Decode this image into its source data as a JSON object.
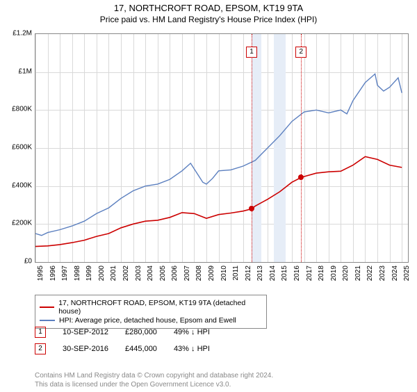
{
  "title": "17, NORTHCROFT ROAD, EPSOM, KT19 9TA",
  "subtitle": "Price paid vs. HM Land Registry's House Price Index (HPI)",
  "chart": {
    "type": "line",
    "plot_bg": "#ffffff",
    "grid_color": "#d9d9d9",
    "border_color": "#888888",
    "x_min": 1995,
    "x_max": 2025.5,
    "y_min": 0,
    "y_max": 1200000,
    "y_ticks": [
      0,
      200000,
      400000,
      600000,
      800000,
      1000000,
      1200000
    ],
    "y_tick_labels": [
      "£0",
      "£200K",
      "£400K",
      "£600K",
      "£800K",
      "£1M",
      "£1.2M"
    ],
    "x_ticks": [
      1995,
      1996,
      1997,
      1998,
      1999,
      2000,
      2001,
      2002,
      2003,
      2004,
      2005,
      2006,
      2007,
      2008,
      2009,
      2010,
      2011,
      2012,
      2013,
      2014,
      2015,
      2016,
      2017,
      2018,
      2019,
      2020,
      2021,
      2022,
      2023,
      2024,
      2025
    ],
    "highlight_bands": [
      [
        2012.7,
        2013.5
      ],
      [
        2014.5,
        2015.5
      ]
    ],
    "series": [
      {
        "name": "property",
        "color": "#cc0000",
        "width": 1.6,
        "data": [
          [
            1995,
            82000
          ],
          [
            1996,
            85000
          ],
          [
            1997,
            92000
          ],
          [
            1998,
            102000
          ],
          [
            1999,
            115000
          ],
          [
            2000,
            135000
          ],
          [
            2001,
            150000
          ],
          [
            2002,
            180000
          ],
          [
            2003,
            200000
          ],
          [
            2004,
            215000
          ],
          [
            2005,
            220000
          ],
          [
            2006,
            235000
          ],
          [
            2007,
            260000
          ],
          [
            2008,
            255000
          ],
          [
            2009,
            230000
          ],
          [
            2010,
            250000
          ],
          [
            2011,
            258000
          ],
          [
            2012,
            268000
          ],
          [
            2012.7,
            280000
          ],
          [
            2013,
            295000
          ],
          [
            2014,
            330000
          ],
          [
            2015,
            370000
          ],
          [
            2016,
            420000
          ],
          [
            2016.75,
            445000
          ],
          [
            2017,
            450000
          ],
          [
            2018,
            468000
          ],
          [
            2019,
            475000
          ],
          [
            2020,
            478000
          ],
          [
            2021,
            510000
          ],
          [
            2022,
            555000
          ],
          [
            2023,
            540000
          ],
          [
            2024,
            510000
          ],
          [
            2025,
            498000
          ]
        ]
      },
      {
        "name": "hpi",
        "color": "#5b7fbf",
        "width": 1.4,
        "data": [
          [
            1995,
            150000
          ],
          [
            1995.5,
            140000
          ],
          [
            1996,
            155000
          ],
          [
            1997,
            170000
          ],
          [
            1998,
            190000
          ],
          [
            1999,
            215000
          ],
          [
            2000,
            255000
          ],
          [
            2001,
            285000
          ],
          [
            2002,
            335000
          ],
          [
            2003,
            375000
          ],
          [
            2004,
            400000
          ],
          [
            2005,
            410000
          ],
          [
            2006,
            435000
          ],
          [
            2007,
            480000
          ],
          [
            2007.7,
            520000
          ],
          [
            2008,
            490000
          ],
          [
            2008.7,
            420000
          ],
          [
            2009,
            410000
          ],
          [
            2009.5,
            440000
          ],
          [
            2010,
            480000
          ],
          [
            2011,
            485000
          ],
          [
            2012,
            505000
          ],
          [
            2013,
            535000
          ],
          [
            2014,
            600000
          ],
          [
            2015,
            665000
          ],
          [
            2016,
            740000
          ],
          [
            2017,
            790000
          ],
          [
            2018,
            800000
          ],
          [
            2019,
            785000
          ],
          [
            2020,
            800000
          ],
          [
            2020.5,
            780000
          ],
          [
            2021,
            850000
          ],
          [
            2022,
            945000
          ],
          [
            2022.8,
            990000
          ],
          [
            2023,
            930000
          ],
          [
            2023.5,
            900000
          ],
          [
            2024,
            920000
          ],
          [
            2024.7,
            970000
          ],
          [
            2025,
            890000
          ]
        ]
      }
    ],
    "sale_markers": [
      {
        "n": "1",
        "x": 2012.7,
        "y": 280000,
        "box_top": 18
      },
      {
        "n": "2",
        "x": 2016.75,
        "y": 445000,
        "box_top": 18
      }
    ]
  },
  "legend": {
    "items": [
      {
        "color": "#cc0000",
        "label": "17, NORTHCROFT ROAD, EPSOM, KT19 9TA (detached house)"
      },
      {
        "color": "#5b7fbf",
        "label": "HPI: Average price, detached house, Epsom and Ewell"
      }
    ]
  },
  "sales": [
    {
      "n": "1",
      "date": "10-SEP-2012",
      "price": "£280,000",
      "pct": "49% ↓ HPI"
    },
    {
      "n": "2",
      "date": "30-SEP-2016",
      "price": "£445,000",
      "pct": "43% ↓ HPI"
    }
  ],
  "footer_line1": "Contains HM Land Registry data © Crown copyright and database right 2024.",
  "footer_line2": "This data is licensed under the Open Government Licence v3.0."
}
